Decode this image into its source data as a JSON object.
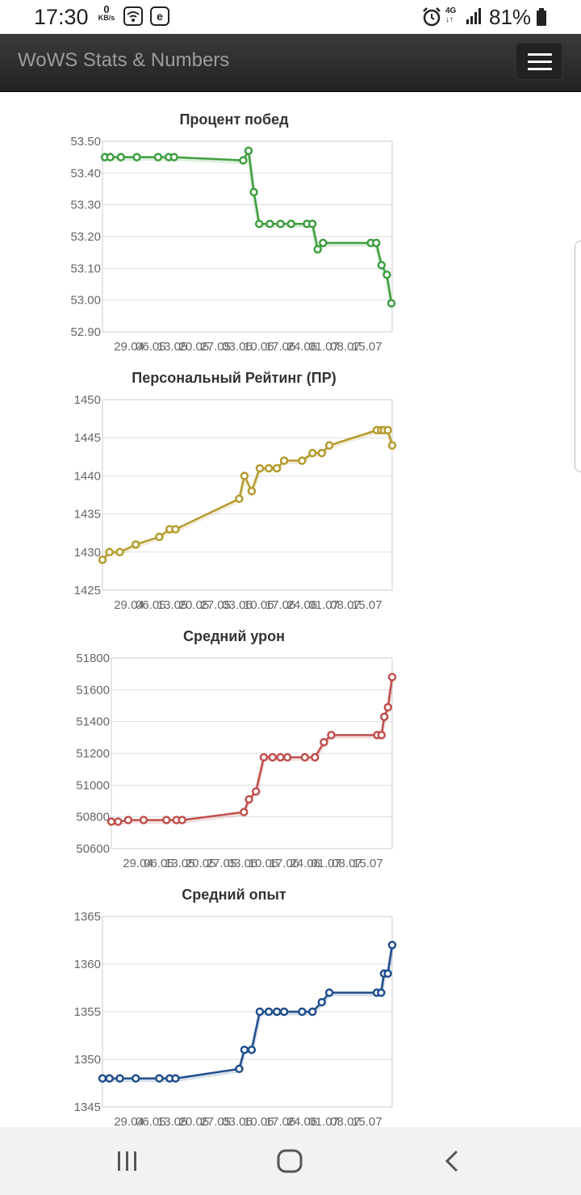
{
  "status_bar": {
    "time": "17:30",
    "net_speed_value": "0",
    "net_speed_unit": "KB/s",
    "network": "4G",
    "battery": "81%"
  },
  "navbar": {
    "brand": "WoWS Stats & Numbers",
    "menu_icon": "hamburger-menu-icon"
  },
  "charts": [
    {
      "title": "Процент побед"
    },
    {
      "title": "Персональный Рейтинг (ПР)"
    },
    {
      "title": "Средний урон"
    },
    {
      "title": "Средний опыт"
    }
  ],
  "chart_data": [
    {
      "type": "line",
      "title": "Процент побед",
      "color": "#3f9e3f",
      "x_tick_labels": [
        "29.04",
        "06.05",
        "13.05",
        "20.05",
        "27.05",
        "03.06",
        "10.06",
        "17.06",
        "24.06",
        "01.07",
        "08.07",
        "15.07"
      ],
      "ylim": [
        52.9,
        53.5
      ],
      "y_ticks": [
        "53.50",
        "53.40",
        "53.30",
        "53.20",
        "53.10",
        "53.00",
        "52.90"
      ],
      "x": [
        0,
        1,
        3,
        6,
        10,
        12,
        13,
        26,
        27,
        28,
        29,
        31,
        33,
        35,
        38,
        39,
        40,
        41,
        50,
        51,
        52,
        53
      ],
      "y": [
        53.45,
        53.45,
        53.45,
        53.45,
        53.45,
        53.45,
        53.45,
        53.44,
        53.47,
        53.34,
        53.24,
        53.24,
        53.24,
        53.24,
        53.24,
        53.24,
        53.16,
        53.18,
        53.18,
        53.18,
        53.11,
        53.08
      ],
      "last_point": 52.99
    },
    {
      "type": "line",
      "title": "Персональный Рейтинг (ПР)",
      "color": "#b59b2e",
      "x_tick_labels": [
        "29.04",
        "06.05",
        "13.05",
        "20.05",
        "27.05",
        "03.06",
        "10.06",
        "17.06",
        "24.06",
        "01.07",
        "08.07",
        "15.07"
      ],
      "ylim": [
        1425,
        1450
      ],
      "y_ticks": [
        "1450",
        "1445",
        "1440",
        "1435",
        "1430",
        "1425"
      ],
      "values": [
        1429,
        1430,
        1430,
        1431,
        1432,
        1433,
        1433,
        1437,
        1440,
        1438,
        1441,
        1441,
        1441,
        1442,
        1442,
        1443,
        1443,
        1444,
        1446,
        1446,
        1446,
        1446,
        1444
      ]
    },
    {
      "type": "line",
      "title": "Средний урон",
      "color": "#c0504d",
      "x_tick_labels": [
        "29.04",
        "06.05",
        "13.05",
        "20.05",
        "27.05",
        "03.06",
        "10.06",
        "17.06",
        "24.06",
        "01.07",
        "08.07",
        "15.07"
      ],
      "ylim": [
        50600,
        51800
      ],
      "y_ticks": [
        "51800",
        "51600",
        "51400",
        "51200",
        "51000",
        "50800",
        "50600"
      ],
      "values": [
        50770,
        50770,
        50780,
        50780,
        50780,
        50780,
        50780,
        50830,
        50910,
        50960,
        51175,
        51175,
        51175,
        51175,
        51175,
        51175,
        51270,
        51315,
        51315,
        51315,
        51430,
        51490,
        51680
      ]
    },
    {
      "type": "line",
      "title": "Средний опыт",
      "color": "#1f4e8c",
      "x_tick_labels": [
        "29.04",
        "06.05",
        "13.05",
        "20.05",
        "27.05",
        "03.06",
        "10.06",
        "17.06",
        "24.06",
        "01.07",
        "08.07",
        "15.07"
      ],
      "ylim": [
        1345,
        1365
      ],
      "y_ticks": [
        "1365",
        "1360",
        "1355",
        "1350",
        "1345"
      ],
      "values": [
        1348,
        1348,
        1348,
        1348,
        1348,
        1348,
        1348,
        1349,
        1351,
        1351,
        1355,
        1355,
        1355,
        1355,
        1355,
        1355,
        1356,
        1357,
        1357,
        1357,
        1359,
        1359,
        1362
      ]
    }
  ]
}
